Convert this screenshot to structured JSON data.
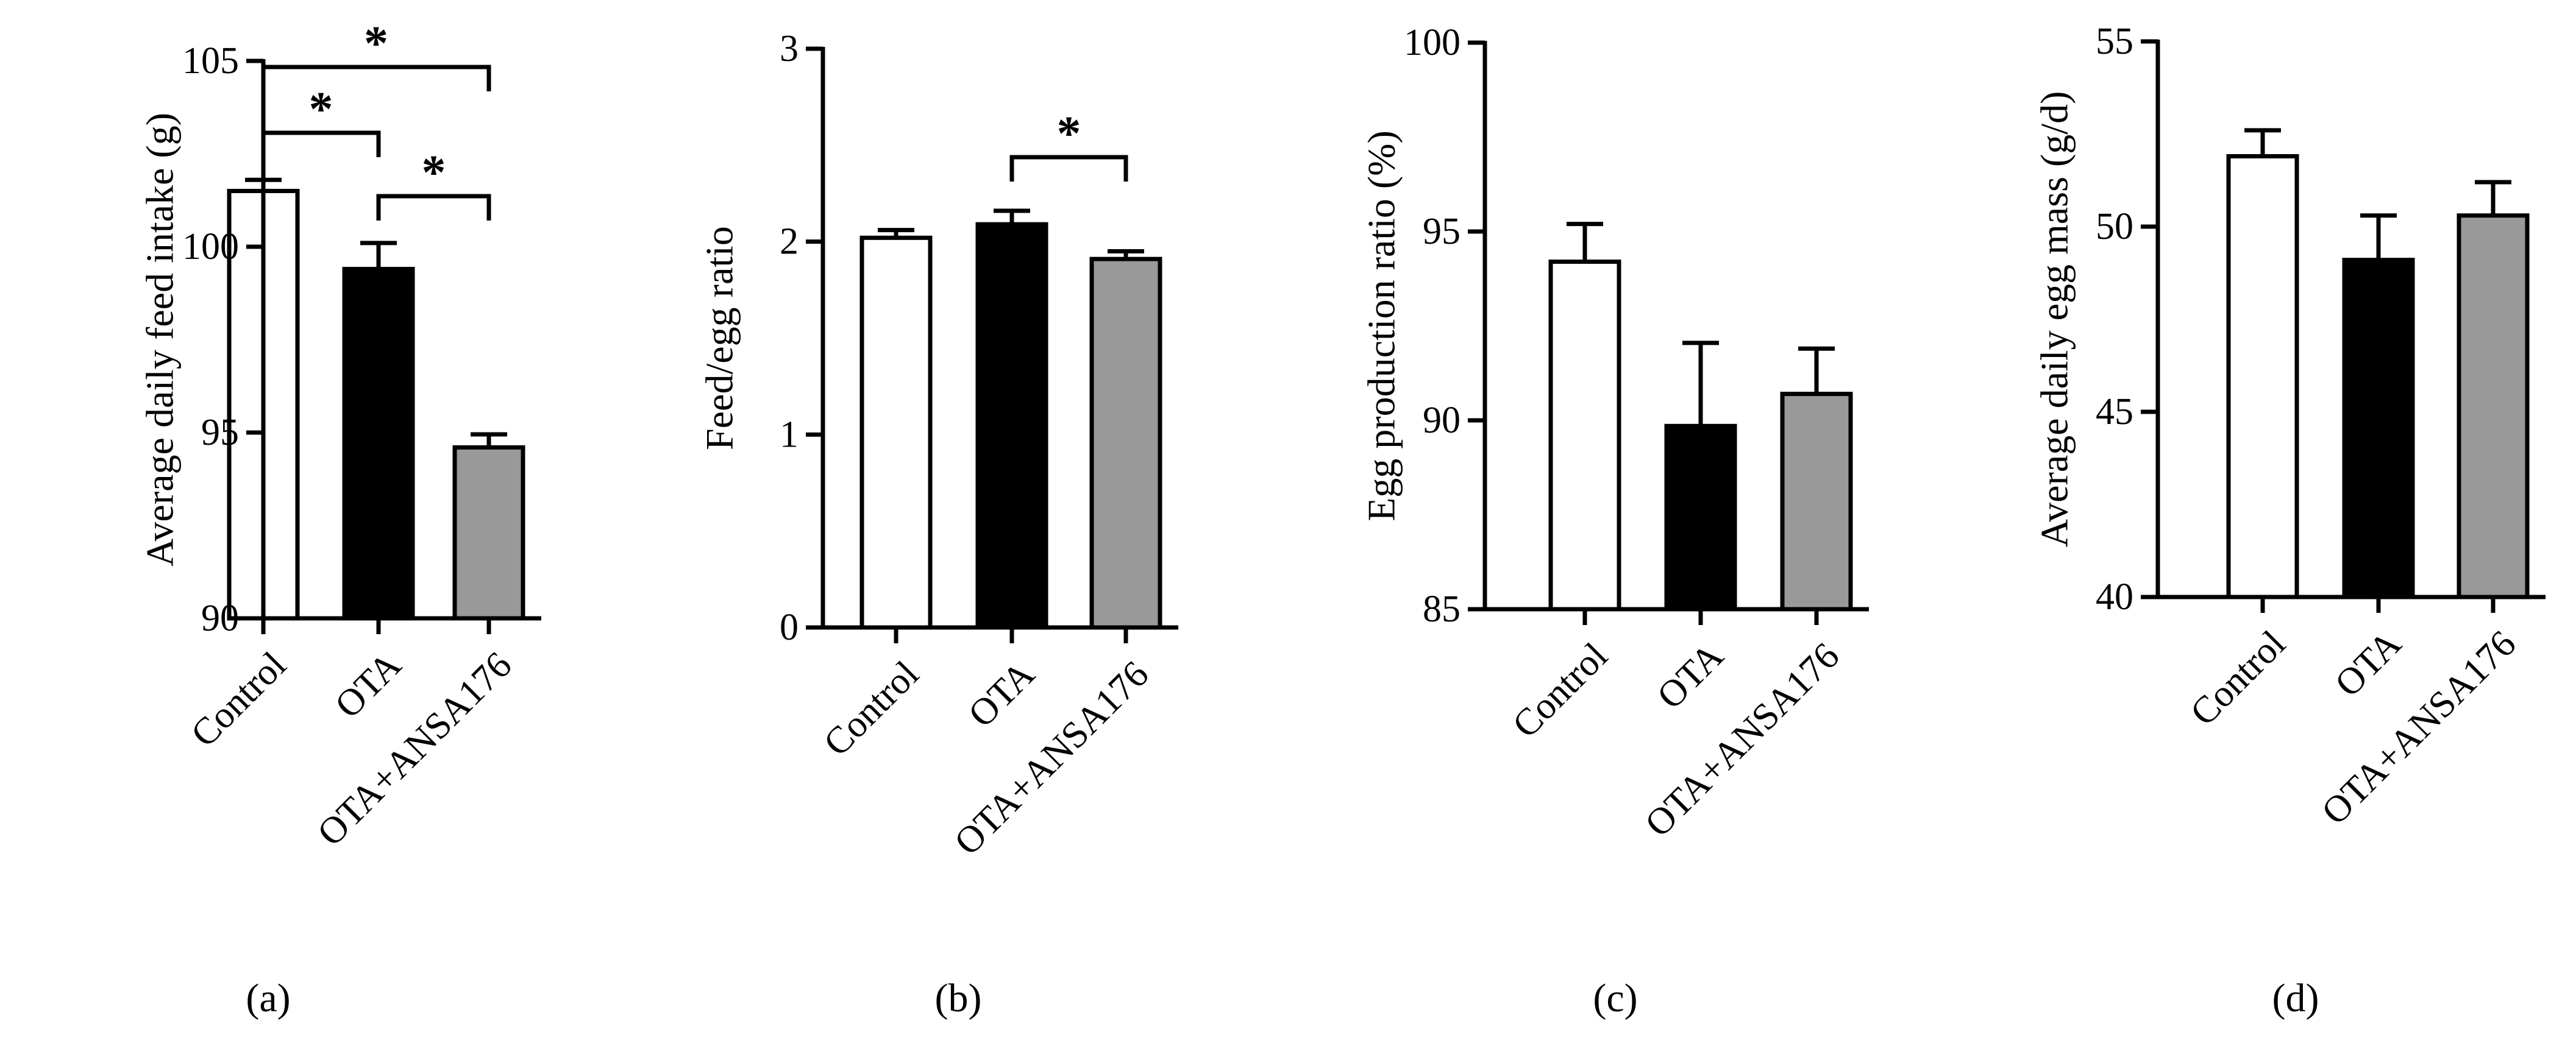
{
  "chart_data": [
    {
      "type": "bar",
      "panel": "a",
      "panel_label": "(a)",
      "title": "",
      "xlabel": "",
      "ylabel": "Average daily feed intake (g)",
      "categories": [
        "Control",
        "OTA",
        "OTA+ANSA176"
      ],
      "values": [
        101.5,
        99.4,
        94.6
      ],
      "errors": [
        0.3,
        0.7,
        0.35
      ],
      "colors": [
        "#ffffff",
        "#000000",
        "#999999"
      ],
      "ylim": [
        90,
        105
      ],
      "yticks": [
        90,
        95,
        100,
        105
      ],
      "significance": [
        {
          "from": 0,
          "to": 1,
          "label": "*"
        },
        {
          "from": 1,
          "to": 2,
          "label": "*"
        },
        {
          "from": 0,
          "to": 2,
          "label": "*"
        }
      ]
    },
    {
      "type": "bar",
      "panel": "b",
      "panel_label": "(b)",
      "title": "",
      "xlabel": "",
      "ylabel": "Feed/egg ratio",
      "categories": [
        "Control",
        "OTA",
        "OTA+ANSA176"
      ],
      "values": [
        2.02,
        2.09,
        1.91
      ],
      "errors": [
        0.04,
        0.07,
        0.04
      ],
      "colors": [
        "#ffffff",
        "#000000",
        "#999999"
      ],
      "ylim": [
        0,
        3
      ],
      "yticks": [
        0,
        1,
        2,
        3
      ],
      "significance": [
        {
          "from": 1,
          "to": 2,
          "label": "*"
        }
      ]
    },
    {
      "type": "bar",
      "panel": "c",
      "panel_label": "(c)",
      "title": "",
      "xlabel": "",
      "ylabel": "Egg production ratio (%)",
      "categories": [
        "Control",
        "OTA",
        "OTA+ANSA176"
      ],
      "values": [
        94.2,
        89.85,
        90.7
      ],
      "errors": [
        1.0,
        2.2,
        1.2
      ],
      "colors": [
        "#ffffff",
        "#000000",
        "#999999"
      ],
      "ylim": [
        85,
        100
      ],
      "yticks": [
        85,
        90,
        95,
        100
      ],
      "significance": []
    },
    {
      "type": "bar",
      "panel": "d",
      "panel_label": "(d)",
      "title": "",
      "xlabel": "",
      "ylabel": "Average daily egg mass (g/d)",
      "categories": [
        "Control",
        "OTA",
        "OTA+ANSA176"
      ],
      "values": [
        51.9,
        49.1,
        50.3
      ],
      "errors": [
        0.7,
        1.2,
        0.9
      ],
      "colors": [
        "#ffffff",
        "#000000",
        "#999999"
      ],
      "ylim": [
        40,
        55
      ],
      "yticks": [
        40,
        45,
        50,
        55
      ],
      "significance": []
    }
  ]
}
